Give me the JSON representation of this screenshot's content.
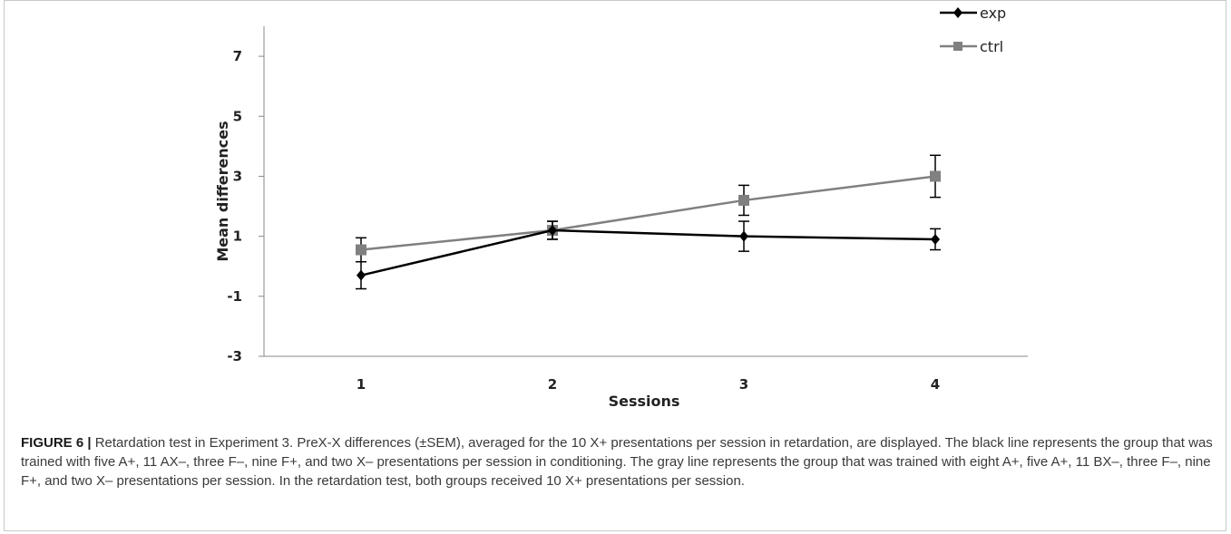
{
  "chart_data": {
    "type": "line",
    "xlabel": "Sessions",
    "ylabel": "Mean differences",
    "categories": [
      "1",
      "2",
      "3",
      "4"
    ],
    "yticks": [
      "-3",
      "-1",
      "1",
      "3",
      "5",
      "7"
    ],
    "ylim": [
      -3,
      8
    ],
    "legend_position": "top-right",
    "series": [
      {
        "name": "exp",
        "color": "#000000",
        "marker": "diamond",
        "values": [
          -0.3,
          1.2,
          1.0,
          0.9
        ],
        "error": [
          0.45,
          0.3,
          0.5,
          0.35
        ]
      },
      {
        "name": "ctrl",
        "color": "#808080",
        "marker": "square",
        "values": [
          0.55,
          1.2,
          2.2,
          3.0
        ],
        "error": [
          0.4,
          0.3,
          0.5,
          0.7
        ]
      }
    ]
  },
  "caption": {
    "label": "FIGURE 6 |",
    "text": " Retardation test in Experiment 3. PreX-X differences (±SEM), averaged for the 10 X+ presentations per session in retardation, are displayed. The black line represents the group that was trained with five A+, 11 AX–, three F–, nine F+, and two X– presentations per session in conditioning. The gray line represents the group that was trained with eight A+, five A+, 11 BX–, three F–, nine F+, and two X– presentations per session. In the retardation test, both groups received 10 X+ presentations per session."
  }
}
